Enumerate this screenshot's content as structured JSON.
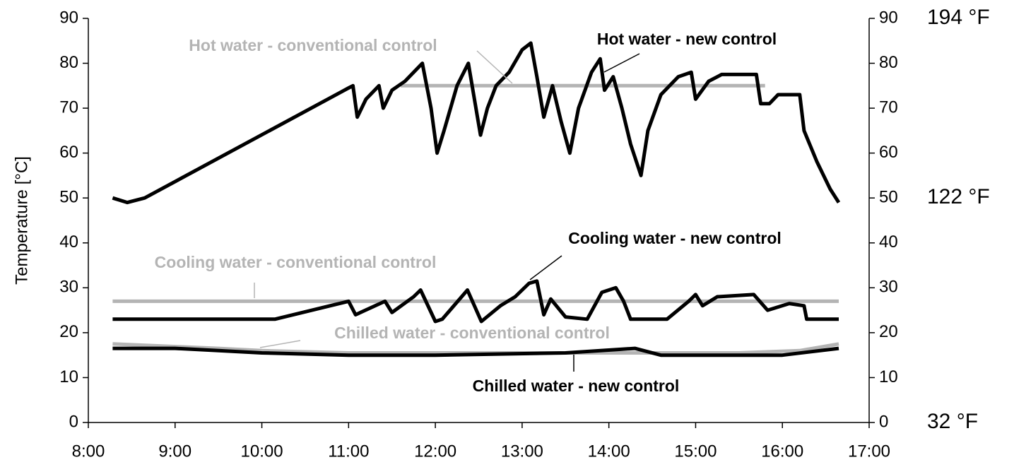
{
  "chart_data": {
    "type": "line",
    "y_label": "Temperature [°C]",
    "xlim": [
      8,
      17
    ],
    "xticks": [
      {
        "value": 8,
        "label": "8:00"
      },
      {
        "value": 9,
        "label": "9:00"
      },
      {
        "value": 10,
        "label": "10:00"
      },
      {
        "value": 11,
        "label": "11:00"
      },
      {
        "value": 12,
        "label": "12:00"
      },
      {
        "value": 13,
        "label": "13:00"
      },
      {
        "value": 14,
        "label": "14:00"
      },
      {
        "value": 15,
        "label": "15:00"
      },
      {
        "value": 16,
        "label": "16:00"
      },
      {
        "value": 17,
        "label": "17:00"
      }
    ],
    "ylim": [
      0,
      90
    ],
    "yticks": [
      0,
      10,
      20,
      30,
      40,
      50,
      60,
      70,
      80,
      90
    ],
    "y2lim": [
      0,
      90
    ],
    "y2ticks": [
      0,
      10,
      20,
      30,
      40,
      50,
      60,
      70,
      80,
      90
    ],
    "fahrenheit_labels": [
      {
        "value": 90,
        "label": "194 °F"
      },
      {
        "value": 50,
        "label": "122 °F"
      },
      {
        "value": 0,
        "label": "32 °F"
      }
    ],
    "series": [
      {
        "name": "Hot water - conventional control",
        "color": "#b4b4b4",
        "x": [
          11.6,
          15.8
        ],
        "values": [
          75,
          75
        ]
      },
      {
        "name": "Cooling water - conventional control",
        "color": "#b4b4b4",
        "x": [
          8.28,
          16.65
        ],
        "values": [
          27,
          27
        ]
      },
      {
        "name": "Chilled water - conventional control",
        "color": "#b4b4b4",
        "x": [
          8.28,
          9.5,
          10,
          11,
          15.5,
          16.2,
          16.65
        ],
        "values": [
          17.5,
          16.5,
          16,
          15.5,
          15.5,
          16,
          17.5
        ]
      },
      {
        "name": "Hot water - new control",
        "color": "#000000",
        "x": [
          8.28,
          8.45,
          8.65,
          11.0,
          11.05,
          11.1,
          11.2,
          11.35,
          11.4,
          11.5,
          11.65,
          11.8,
          11.85,
          11.95,
          12.02,
          12.1,
          12.25,
          12.38,
          12.45,
          12.52,
          12.6,
          12.7,
          12.85,
          13.0,
          13.1,
          13.17,
          13.25,
          13.35,
          13.45,
          13.55,
          13.65,
          13.8,
          13.9,
          13.95,
          14.05,
          14.15,
          14.25,
          14.37,
          14.45,
          14.6,
          14.8,
          14.95,
          15.0,
          15.15,
          15.3,
          15.7,
          15.75,
          15.85,
          15.95,
          16.2,
          16.25,
          16.4,
          16.55,
          16.65
        ],
        "values": [
          50,
          49,
          50,
          74.5,
          75,
          68,
          72,
          75,
          70,
          74,
          76,
          79,
          80,
          70,
          60,
          65,
          75,
          80,
          72,
          64,
          70,
          75,
          78,
          83,
          84.5,
          77,
          68,
          75,
          67,
          60,
          70,
          78,
          81,
          74,
          77,
          70,
          62,
          55,
          65,
          73,
          77,
          78,
          72,
          76,
          77.5,
          77.5,
          71,
          71,
          73,
          73,
          65,
          58,
          52,
          49
        ]
      },
      {
        "name": "Cooling water - new control",
        "color": "#000000",
        "x": [
          8.28,
          10.15,
          11.0,
          11.08,
          11.42,
          11.5,
          11.75,
          11.83,
          12.0,
          12.08,
          12.37,
          12.53,
          12.75,
          12.92,
          13.08,
          13.17,
          13.25,
          13.33,
          13.5,
          13.75,
          13.92,
          14.08,
          14.17,
          14.25,
          14.67,
          14.92,
          15.0,
          15.08,
          15.25,
          15.67,
          15.83,
          16.08,
          16.25,
          16.28,
          16.65
        ],
        "values": [
          23,
          23,
          27,
          24,
          27,
          24.5,
          28,
          29.5,
          22.5,
          23,
          29.5,
          22.5,
          26,
          28,
          31,
          31.5,
          24,
          27.5,
          23.5,
          23,
          29,
          30,
          27,
          23,
          23,
          27,
          28.5,
          26,
          28,
          28.5,
          25,
          26.5,
          26,
          23,
          23
        ]
      },
      {
        "name": "Chilled water - new control",
        "color": "#000000",
        "x": [
          8.28,
          9,
          9.5,
          10,
          11,
          12,
          13.5,
          14.3,
          14.6,
          16,
          16.65
        ],
        "values": [
          16.5,
          16.5,
          16,
          15.5,
          15,
          15,
          15.5,
          16.5,
          15,
          15,
          16.5
        ]
      }
    ],
    "annotations": [
      "Hot water - conventional control",
      "Cooling water - conventional control",
      "Chilled water - conventional control",
      "Hot water - new control",
      "Cooling water - new control",
      "Chilled water - new control"
    ]
  }
}
